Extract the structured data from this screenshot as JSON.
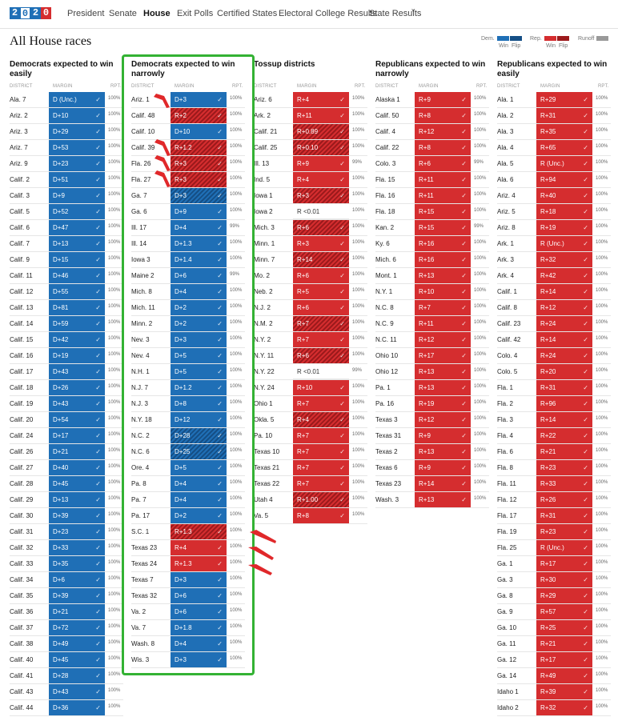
{
  "nav": {
    "logo": [
      "2",
      "0",
      "2",
      "0"
    ],
    "items": [
      "President",
      "Senate",
      "House",
      "Exit Polls",
      "Certified States",
      "Electoral College Results",
      "State Results"
    ],
    "active": "House",
    "state_results_caret": "˅"
  },
  "page": {
    "title": "All House races"
  },
  "legend": {
    "dem": "Dem.",
    "rep": "Rep.",
    "win": "Win",
    "flip": "Flip",
    "runoff": "Runoff"
  },
  "colors": {
    "dem": "#1f6fb6",
    "rep": "#d52d2f",
    "highlight": "#33b233",
    "arrow": "#e0282a"
  },
  "subheaders": {
    "district": "DISTRICT",
    "margin": "MARGIN",
    "rpt": "RPT."
  },
  "check": "✓",
  "columns": [
    {
      "title": "Democrats expected to win easily",
      "rows": [
        [
          "Ala. 7",
          "D (Unc.)",
          "D",
          "100%"
        ],
        [
          "Ariz. 2",
          "D+10",
          "D",
          "100%"
        ],
        [
          "Ariz. 3",
          "D+29",
          "D",
          "100%"
        ],
        [
          "Ariz. 7",
          "D+53",
          "D",
          "100%"
        ],
        [
          "Ariz. 9",
          "D+23",
          "D",
          "100%"
        ],
        [
          "Calif. 2",
          "D+51",
          "D",
          "100%"
        ],
        [
          "Calif. 3",
          "D+9",
          "D",
          "100%"
        ],
        [
          "Calif. 5",
          "D+52",
          "D",
          "100%"
        ],
        [
          "Calif. 6",
          "D+47",
          "D",
          "100%"
        ],
        [
          "Calif. 7",
          "D+13",
          "D",
          "100%"
        ],
        [
          "Calif. 9",
          "D+15",
          "D",
          "100%"
        ],
        [
          "Calif. 11",
          "D+46",
          "D",
          "100%"
        ],
        [
          "Calif. 12",
          "D+55",
          "D",
          "100%"
        ],
        [
          "Calif. 13",
          "D+81",
          "D",
          "100%"
        ],
        [
          "Calif. 14",
          "D+59",
          "D",
          "100%"
        ],
        [
          "Calif. 15",
          "D+42",
          "D",
          "100%"
        ],
        [
          "Calif. 16",
          "D+19",
          "D",
          "100%"
        ],
        [
          "Calif. 17",
          "D+43",
          "D",
          "100%"
        ],
        [
          "Calif. 18",
          "D+26",
          "D",
          "100%"
        ],
        [
          "Calif. 19",
          "D+43",
          "D",
          "100%"
        ],
        [
          "Calif. 20",
          "D+54",
          "D",
          "100%"
        ],
        [
          "Calif. 24",
          "D+17",
          "D",
          "100%"
        ],
        [
          "Calif. 26",
          "D+21",
          "D",
          "100%"
        ],
        [
          "Calif. 27",
          "D+40",
          "D",
          "100%"
        ],
        [
          "Calif. 28",
          "D+45",
          "D",
          "100%"
        ],
        [
          "Calif. 29",
          "D+13",
          "D",
          "100%"
        ],
        [
          "Calif. 30",
          "D+39",
          "D",
          "100%"
        ],
        [
          "Calif. 31",
          "D+23",
          "D",
          "100%"
        ],
        [
          "Calif. 32",
          "D+33",
          "D",
          "100%"
        ],
        [
          "Calif. 33",
          "D+35",
          "D",
          "100%"
        ],
        [
          "Calif. 34",
          "D+6",
          "D",
          "100%"
        ],
        [
          "Calif. 35",
          "D+39",
          "D",
          "100%"
        ],
        [
          "Calif. 36",
          "D+21",
          "D",
          "100%"
        ],
        [
          "Calif. 37",
          "D+72",
          "D",
          "100%"
        ],
        [
          "Calif. 38",
          "D+49",
          "D",
          "100%"
        ],
        [
          "Calif. 40",
          "D+45",
          "D",
          "100%"
        ],
        [
          "Calif. 41",
          "D+28",
          "D",
          "100%"
        ],
        [
          "Calif. 43",
          "D+43",
          "D",
          "100%"
        ],
        [
          "Calif. 44",
          "D+36",
          "D",
          "100%"
        ]
      ]
    },
    {
      "title": "Democrats expected to win narrowly",
      "rows": [
        [
          "Ariz. 1",
          "D+3",
          "D",
          "100%"
        ],
        [
          "Calif. 48",
          "R+2",
          "RF",
          "100%"
        ],
        [
          "Calif. 10",
          "D+10",
          "D",
          "100%"
        ],
        [
          "Calif. 39",
          "R+1.2",
          "RF",
          "100%"
        ],
        [
          "Fla. 26",
          "R+3",
          "RF",
          "100%"
        ],
        [
          "Fla. 27",
          "R+3",
          "RF",
          "100%"
        ],
        [
          "Ga. 7",
          "D+3",
          "DF",
          "100%"
        ],
        [
          "Ga. 6",
          "D+9",
          "D",
          "100%"
        ],
        [
          "Ill. 17",
          "D+4",
          "D",
          "99%"
        ],
        [
          "Ill. 14",
          "D+1.3",
          "D",
          "100%"
        ],
        [
          "Iowa 3",
          "D+1.4",
          "D",
          "100%"
        ],
        [
          "Maine 2",
          "D+6",
          "D",
          "99%"
        ],
        [
          "Mich. 8",
          "D+4",
          "D",
          "100%"
        ],
        [
          "Mich. 11",
          "D+2",
          "D",
          "100%"
        ],
        [
          "Minn. 2",
          "D+2",
          "D",
          "100%"
        ],
        [
          "Nev. 3",
          "D+3",
          "D",
          "100%"
        ],
        [
          "Nev. 4",
          "D+5",
          "D",
          "100%"
        ],
        [
          "N.H. 1",
          "D+5",
          "D",
          "100%"
        ],
        [
          "N.J. 7",
          "D+1.2",
          "D",
          "100%"
        ],
        [
          "N.J. 3",
          "D+8",
          "D",
          "100%"
        ],
        [
          "N.Y. 18",
          "D+12",
          "D",
          "100%"
        ],
        [
          "N.C. 2",
          "D+28",
          "DF",
          "100%"
        ],
        [
          "N.C. 6",
          "D+25",
          "DF",
          "100%"
        ],
        [
          "Ore. 4",
          "D+5",
          "D",
          "100%"
        ],
        [
          "Pa. 8",
          "D+4",
          "D",
          "100%"
        ],
        [
          "Pa. 7",
          "D+4",
          "D",
          "100%"
        ],
        [
          "Pa. 17",
          "D+2",
          "D",
          "100%"
        ],
        [
          "S.C. 1",
          "R+1.3",
          "RF",
          "100%"
        ],
        [
          "Texas 23",
          "R+4",
          "R",
          "100%"
        ],
        [
          "Texas 24",
          "R+1.3",
          "R",
          "100%"
        ],
        [
          "Texas 7",
          "D+3",
          "D",
          "100%"
        ],
        [
          "Texas 32",
          "D+6",
          "D",
          "100%"
        ],
        [
          "Va. 2",
          "D+6",
          "D",
          "100%"
        ],
        [
          "Va. 7",
          "D+1.8",
          "D",
          "100%"
        ],
        [
          "Wash. 8",
          "D+4",
          "D",
          "100%"
        ],
        [
          "Wis. 3",
          "D+3",
          "D",
          "100%"
        ]
      ]
    },
    {
      "title": "Tossup districts",
      "rows": [
        [
          "Ariz. 6",
          "R+4",
          "R",
          "100%"
        ],
        [
          "Ark. 2",
          "R+11",
          "R",
          "100%"
        ],
        [
          "Calif. 21",
          "R+0.89",
          "RF",
          "100%"
        ],
        [
          "Calif. 25",
          "R+0.10",
          "RF",
          "100%"
        ],
        [
          "Ill. 13",
          "R+9",
          "R",
          "99%"
        ],
        [
          "Ind. 5",
          "R+4",
          "R",
          "100%"
        ],
        [
          "Iowa 1",
          "R+3",
          "RF",
          "100%"
        ],
        [
          "Iowa 2",
          "R <0.01",
          "N",
          "100%"
        ],
        [
          "Mich. 3",
          "R+6",
          "RF",
          "100%"
        ],
        [
          "Minn. 1",
          "R+3",
          "R",
          "100%"
        ],
        [
          "Minn. 7",
          "R+14",
          "RF",
          "100%"
        ],
        [
          "Mo. 2",
          "R+6",
          "R",
          "100%"
        ],
        [
          "Neb. 2",
          "R+5",
          "R",
          "100%"
        ],
        [
          "N.J. 2",
          "R+6",
          "R",
          "100%"
        ],
        [
          "N.M. 2",
          "R+7",
          "RF",
          "100%"
        ],
        [
          "N.Y. 2",
          "R+7",
          "R",
          "100%"
        ],
        [
          "N.Y. 11",
          "R+6",
          "RF",
          "100%"
        ],
        [
          "N.Y. 22",
          "R <0.01",
          "N",
          "99%"
        ],
        [
          "N.Y. 24",
          "R+10",
          "R",
          "100%"
        ],
        [
          "Ohio 1",
          "R+7",
          "R",
          "100%"
        ],
        [
          "Okla. 5",
          "R+4",
          "RF",
          "100%"
        ],
        [
          "Pa. 10",
          "R+7",
          "R",
          "100%"
        ],
        [
          "Texas 10",
          "R+7",
          "R",
          "100%"
        ],
        [
          "Texas 21",
          "R+7",
          "R",
          "100%"
        ],
        [
          "Texas 22",
          "R+7",
          "R",
          "100%"
        ],
        [
          "Utah 4",
          "R+1.00",
          "RF",
          "100%"
        ],
        [
          "Va. 5",
          "R+8",
          "R",
          "100%"
        ]
      ]
    },
    {
      "title": "Republicans expected to win narrowly",
      "rows": [
        [
          "Alaska 1",
          "R+9",
          "R",
          "100%"
        ],
        [
          "Calif. 50",
          "R+8",
          "R",
          "100%"
        ],
        [
          "Calif. 4",
          "R+12",
          "R",
          "100%"
        ],
        [
          "Calif. 22",
          "R+8",
          "R",
          "100%"
        ],
        [
          "Colo. 3",
          "R+6",
          "R",
          "99%"
        ],
        [
          "Fla. 15",
          "R+11",
          "R",
          "100%"
        ],
        [
          "Fla. 16",
          "R+11",
          "R",
          "100%"
        ],
        [
          "Fla. 18",
          "R+15",
          "R",
          "100%"
        ],
        [
          "Kan. 2",
          "R+15",
          "R",
          "99%"
        ],
        [
          "Ky. 6",
          "R+16",
          "R",
          "100%"
        ],
        [
          "Mich. 6",
          "R+16",
          "R",
          "100%"
        ],
        [
          "Mont. 1",
          "R+13",
          "R",
          "100%"
        ],
        [
          "N.Y. 1",
          "R+10",
          "R",
          "100%"
        ],
        [
          "N.C. 8",
          "R+7",
          "R",
          "100%"
        ],
        [
          "N.C. 9",
          "R+11",
          "R",
          "100%"
        ],
        [
          "N.C. 11",
          "R+12",
          "R",
          "100%"
        ],
        [
          "Ohio 10",
          "R+17",
          "R",
          "100%"
        ],
        [
          "Ohio 12",
          "R+13",
          "R",
          "100%"
        ],
        [
          "Pa. 1",
          "R+13",
          "R",
          "100%"
        ],
        [
          "Pa. 16",
          "R+19",
          "R",
          "100%"
        ],
        [
          "Texas 3",
          "R+12",
          "R",
          "100%"
        ],
        [
          "Texas 31",
          "R+9",
          "R",
          "100%"
        ],
        [
          "Texas 2",
          "R+13",
          "R",
          "100%"
        ],
        [
          "Texas 6",
          "R+9",
          "R",
          "100%"
        ],
        [
          "Texas 23",
          "R+14",
          "R",
          "100%"
        ],
        [
          "Wash. 3",
          "R+13",
          "R",
          "100%"
        ]
      ]
    },
    {
      "title": "Republicans expected to win easily",
      "rows": [
        [
          "Ala. 1",
          "R+29",
          "R",
          "100%"
        ],
        [
          "Ala. 2",
          "R+31",
          "R",
          "100%"
        ],
        [
          "Ala. 3",
          "R+35",
          "R",
          "100%"
        ],
        [
          "Ala. 4",
          "R+65",
          "R",
          "100%"
        ],
        [
          "Ala. 5",
          "R (Unc.)",
          "R",
          "100%"
        ],
        [
          "Ala. 6",
          "R+94",
          "R",
          "100%"
        ],
        [
          "Ariz. 4",
          "R+40",
          "R",
          "100%"
        ],
        [
          "Ariz. 5",
          "R+18",
          "R",
          "100%"
        ],
        [
          "Ariz. 8",
          "R+19",
          "R",
          "100%"
        ],
        [
          "Ark. 1",
          "R (Unc.)",
          "R",
          "100%"
        ],
        [
          "Ark. 3",
          "R+32",
          "R",
          "100%"
        ],
        [
          "Ark. 4",
          "R+42",
          "R",
          "100%"
        ],
        [
          "Calif. 1",
          "R+14",
          "R",
          "100%"
        ],
        [
          "Calif. 8",
          "R+12",
          "R",
          "100%"
        ],
        [
          "Calif. 23",
          "R+24",
          "R",
          "100%"
        ],
        [
          "Calif. 42",
          "R+14",
          "R",
          "100%"
        ],
        [
          "Colo. 4",
          "R+24",
          "R",
          "100%"
        ],
        [
          "Colo. 5",
          "R+20",
          "R",
          "100%"
        ],
        [
          "Fla. 1",
          "R+31",
          "R",
          "100%"
        ],
        [
          "Fla. 2",
          "R+96",
          "R",
          "100%"
        ],
        [
          "Fla. 3",
          "R+14",
          "R",
          "100%"
        ],
        [
          "Fla. 4",
          "R+22",
          "R",
          "100%"
        ],
        [
          "Fla. 6",
          "R+21",
          "R",
          "100%"
        ],
        [
          "Fla. 8",
          "R+23",
          "R",
          "100%"
        ],
        [
          "Fla. 11",
          "R+33",
          "R",
          "100%"
        ],
        [
          "Fla. 12",
          "R+26",
          "R",
          "100%"
        ],
        [
          "Fla. 17",
          "R+31",
          "R",
          "100%"
        ],
        [
          "Fla. 19",
          "R+23",
          "R",
          "100%"
        ],
        [
          "Fla. 25",
          "R (Unc.)",
          "R",
          "100%"
        ],
        [
          "Ga. 1",
          "R+17",
          "R",
          "100%"
        ],
        [
          "Ga. 3",
          "R+30",
          "R",
          "100%"
        ],
        [
          "Ga. 8",
          "R+29",
          "R",
          "100%"
        ],
        [
          "Ga. 9",
          "R+57",
          "R",
          "100%"
        ],
        [
          "Ga. 10",
          "R+25",
          "R",
          "100%"
        ],
        [
          "Ga. 11",
          "R+21",
          "R",
          "100%"
        ],
        [
          "Ga. 12",
          "R+17",
          "R",
          "100%"
        ],
        [
          "Ga. 14",
          "R+49",
          "R",
          "100%"
        ],
        [
          "Idaho 1",
          "R+39",
          "R",
          "100%"
        ],
        [
          "Idaho 2",
          "R+32",
          "R",
          "100%"
        ]
      ]
    }
  ]
}
